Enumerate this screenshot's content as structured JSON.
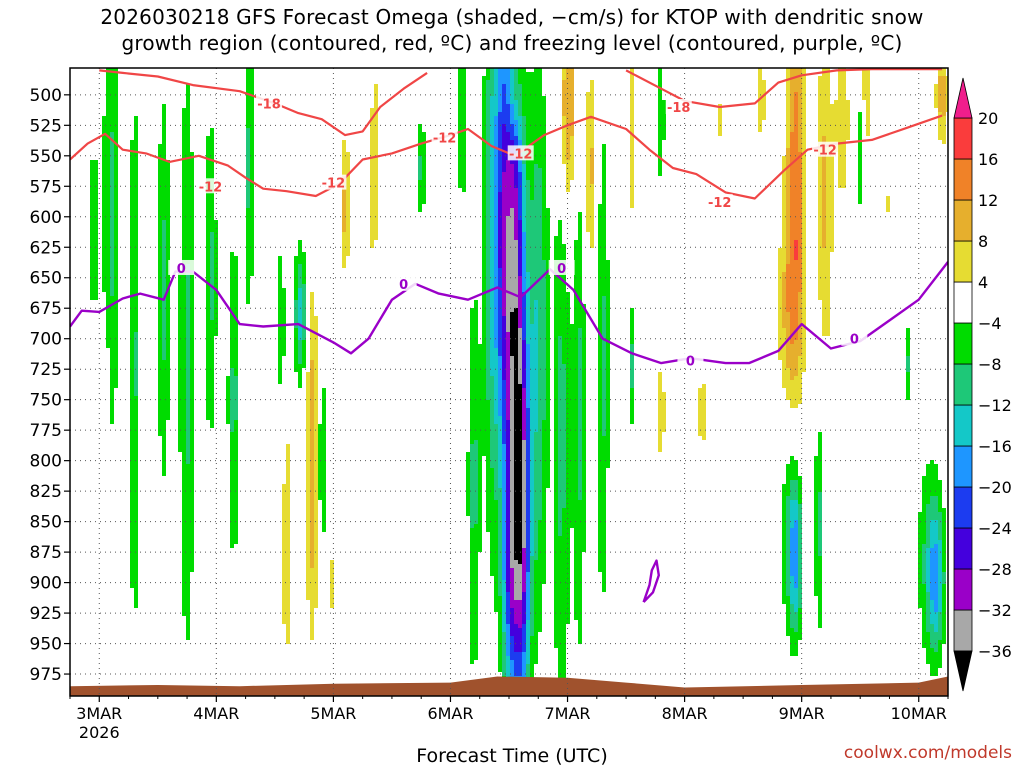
{
  "title_line1": "2026030218 GFS Forecast Omega (shaded, −cm/s) for KTOP with dendritic snow",
  "title_line2": "growth region (contoured, red, ºC) and freezing level (contoured, purple, ºC)",
  "credit": "coolwx.com/models",
  "chart_data": {
    "type": "time-height cross-section",
    "title": "2026030218 GFS Forecast Omega (shaded, −cm/s) for KTOP with dendritic snow growth region (contoured, red, ºC) and freezing level (contoured, purple, ºC)",
    "xlabel": "Forecast Time (UTC)",
    "ylabel": "",
    "x_ticks": [
      "3MAR",
      "4MAR",
      "5MAR",
      "6MAR",
      "7MAR",
      "8MAR",
      "9MAR",
      "10MAR"
    ],
    "x_year_label": "2026",
    "x_range_days": [
      2.75,
      10.25
    ],
    "y_ticks": [
      500,
      525,
      550,
      575,
      600,
      625,
      650,
      675,
      700,
      725,
      750,
      775,
      800,
      825,
      850,
      875,
      900,
      925,
      950,
      975
    ],
    "y_range_hpa": [
      478,
      993
    ],
    "colorbar": {
      "levels": [
        -36,
        -32,
        -28,
        -24,
        -20,
        -16,
        -12,
        -8,
        -4,
        4,
        8,
        12,
        16,
        20
      ],
      "colors": [
        "#000000",
        "#a8a8a8",
        "#9a00c8",
        "#4400dd",
        "#1c3cf0",
        "#1e96ff",
        "#14c8c8",
        "#1ec878",
        "#00dc00",
        "#ffffff",
        "#e6dc32",
        "#e6af2d",
        "#f08228",
        "#fa3c3c",
        "#f01e8c"
      ]
    },
    "contours": {
      "dendritic_red": {
        "color": "#f04646",
        "labels": [
          "-18",
          "-12",
          "-12",
          "-12",
          "-12",
          "-18",
          "-12",
          "-12"
        ],
        "series": [
          {
            "name": "-18 (upper-left)",
            "points": [
              [
                3.0,
                480
              ],
              [
                3.2,
                482
              ],
              [
                3.5,
                485
              ],
              [
                3.8,
                492
              ],
              [
                4.2,
                497
              ],
              [
                4.5,
                507
              ],
              [
                4.7,
                515
              ],
              [
                4.9,
                520
              ],
              [
                5.1,
                533
              ],
              [
                5.25,
                530
              ],
              [
                5.4,
                510
              ],
              [
                5.6,
                495
              ],
              [
                5.8,
                482
              ]
            ]
          },
          {
            "name": "-12 (3-5 Mar)",
            "points": [
              [
                2.75,
                553
              ],
              [
                2.9,
                540
              ],
              [
                3.05,
                532
              ],
              [
                3.2,
                545
              ],
              [
                3.4,
                548
              ],
              [
                3.6,
                555
              ],
              [
                3.85,
                550
              ],
              [
                4.1,
                558
              ],
              [
                4.25,
                568
              ],
              [
                4.4,
                577
              ],
              [
                4.6,
                579
              ],
              [
                4.85,
                583
              ],
              [
                5.05,
                573
              ],
              [
                5.25,
                553
              ],
              [
                5.5,
                548
              ],
              [
                5.75,
                540
              ],
              [
                6.0,
                533
              ]
            ]
          },
          {
            "name": "-12 (6-8 Mar)",
            "points": [
              [
                6.0,
                533
              ],
              [
                6.15,
                528
              ],
              [
                6.35,
                542
              ],
              [
                6.55,
                550
              ],
              [
                6.8,
                533
              ],
              [
                7.0,
                525
              ],
              [
                7.2,
                518
              ],
              [
                7.5,
                528
              ],
              [
                7.7,
                545
              ],
              [
                7.9,
                560
              ],
              [
                8.1,
                565
              ],
              [
                8.35,
                580
              ],
              [
                8.6,
                585
              ],
              [
                8.85,
                562
              ],
              [
                9.05,
                545
              ],
              [
                9.3,
                540
              ],
              [
                9.6,
                537
              ],
              [
                9.9,
                527
              ],
              [
                10.2,
                517
              ]
            ]
          },
          {
            "name": "-18 (upper-right)",
            "points": [
              [
                7.5,
                480
              ],
              [
                7.8,
                495
              ],
              [
                8.0,
                505
              ],
              [
                8.3,
                510
              ],
              [
                8.6,
                507
              ],
              [
                8.8,
                490
              ],
              [
                9.0,
                484
              ],
              [
                9.3,
                480
              ],
              [
                9.6,
                479
              ],
              [
                9.9,
                479
              ],
              [
                10.2,
                479
              ]
            ]
          }
        ]
      },
      "freezing_purple": {
        "color": "#9a00c8",
        "labels": [
          "0",
          "0",
          "0",
          "0",
          "0"
        ],
        "series": [
          {
            "name": "0ºC freezing level",
            "points": [
              [
                2.75,
                690
              ],
              [
                2.85,
                677
              ],
              [
                3.0,
                678
              ],
              [
                3.2,
                667
              ],
              [
                3.35,
                663
              ],
              [
                3.55,
                668
              ],
              [
                3.65,
                645
              ],
              [
                3.8,
                645
              ],
              [
                4.0,
                660
              ],
              [
                4.2,
                688
              ],
              [
                4.4,
                690
              ],
              [
                4.7,
                688
              ],
              [
                5.0,
                703
              ],
              [
                5.15,
                712
              ],
              [
                5.3,
                700
              ],
              [
                5.5,
                668
              ],
              [
                5.7,
                655
              ],
              [
                5.9,
                663
              ],
              [
                6.15,
                668
              ],
              [
                6.4,
                658
              ],
              [
                6.6,
                666
              ],
              [
                6.85,
                643
              ],
              [
                7.05,
                660
              ],
              [
                7.3,
                700
              ],
              [
                7.55,
                712
              ],
              [
                7.8,
                720
              ],
              [
                8.05,
                716
              ],
              [
                8.35,
                720
              ],
              [
                8.55,
                720
              ],
              [
                8.8,
                710
              ],
              [
                9.0,
                688
              ],
              [
                9.25,
                708
              ],
              [
                9.5,
                702
              ],
              [
                9.75,
                685
              ],
              [
                10.0,
                668
              ],
              [
                10.25,
                637
              ]
            ]
          },
          {
            "name": "0ºC low-level pocket",
            "points": [
              [
                7.65,
                916
              ],
              [
                7.7,
                902
              ],
              [
                7.72,
                890
              ],
              [
                7.76,
                882
              ],
              [
                7.78,
                894
              ],
              [
                7.73,
                908
              ],
              [
                7.65,
                916
              ]
            ]
          }
        ]
      }
    },
    "omega_features": [
      {
        "kind": "ascent",
        "time": 6.55,
        "p_top": 478,
        "p_bottom": 960,
        "min_value": -30
      },
      {
        "kind": "ascent",
        "time": 4.85,
        "p_top": 560,
        "p_bottom": 930,
        "min_value": -12
      },
      {
        "kind": "ascent",
        "time": 8.95,
        "p_top": 810,
        "p_bottom": 955,
        "min_value": -12
      },
      {
        "kind": "ascent",
        "time": 10.15,
        "p_top": 780,
        "p_bottom": 945,
        "min_value": -8
      },
      {
        "kind": "descent",
        "time": 8.95,
        "p_top": 478,
        "p_bottom": 730,
        "max_value": 12
      },
      {
        "kind": "descent",
        "time": 7.0,
        "p_top": 478,
        "p_bottom": 650,
        "max_value": 12
      },
      {
        "kind": "descent",
        "time": 4.8,
        "p_top": 720,
        "p_bottom": 930,
        "max_value": 12
      }
    ],
    "terrain": {
      "color": "#a0522d",
      "surface_hpa": [
        [
          2.75,
          985
        ],
        [
          3.5,
          984
        ],
        [
          4.2,
          985
        ],
        [
          5.0,
          983
        ],
        [
          6.0,
          982
        ],
        [
          6.4,
          977
        ],
        [
          7.0,
          978
        ],
        [
          7.5,
          982
        ],
        [
          8.0,
          986
        ],
        [
          9.0,
          984
        ],
        [
          10.0,
          982
        ],
        [
          10.25,
          977
        ]
      ]
    }
  }
}
